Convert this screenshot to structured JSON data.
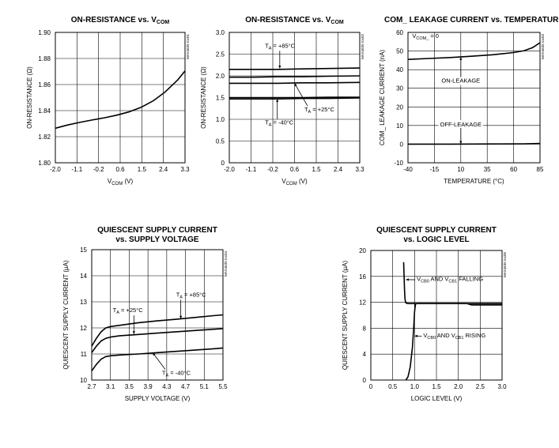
{
  "chart_data": [
    {
      "type": "line",
      "title": "ON-RESISTANCE vs. V",
      "title_sub": "COM",
      "xlabel": "V",
      "xlabel_sub": "COM",
      "xlabel_unit": " (V)",
      "ylabel": "ON-RESISTANCE (Ω)",
      "code": "MAX4635 toc01",
      "xlim": [
        -2.0,
        3.3
      ],
      "ylim": [
        1.8,
        1.9
      ],
      "xticks": [
        "-2.0",
        "-1.1",
        "-0.2",
        "0.6",
        "1.5",
        "2.4",
        "3.3"
      ],
      "yticks": [
        "1.80",
        "1.82",
        "1.84",
        "1.86",
        "1.88",
        "1.90"
      ],
      "series": [
        {
          "x": [
            -2.0,
            -1.5,
            -1.0,
            -0.5,
            0.0,
            0.5,
            1.0,
            1.5,
            2.0,
            2.5,
            3.0,
            3.3
          ],
          "y": [
            1.8265,
            1.829,
            1.831,
            1.8328,
            1.8345,
            1.8365,
            1.839,
            1.8425,
            1.8475,
            1.8545,
            1.8635,
            1.8705
          ]
        }
      ],
      "annotations": []
    },
    {
      "type": "line",
      "title": "ON-RESISTANCE vs. V",
      "title_sub": "COM",
      "xlabel": "V",
      "xlabel_sub": "COM",
      "xlabel_unit": " (V)",
      "ylabel": "ON-RESISTANCE (Ω)",
      "code": "MAX4635 toc02",
      "xlim": [
        -2.0,
        3.3
      ],
      "ylim": [
        0,
        3.0
      ],
      "xticks": [
        "-2.0",
        "-1.1",
        "-0.2",
        "0.6",
        "1.5",
        "2.4",
        "3.3"
      ],
      "yticks": [
        "0",
        "0.5",
        "1.0",
        "1.5",
        "2.0",
        "2.5",
        "3.0"
      ],
      "series": [
        {
          "x": [
            -2.0,
            -1.0,
            0.0,
            1.0,
            2.0,
            3.3
          ],
          "y": [
            2.15,
            2.15,
            2.15,
            2.16,
            2.17,
            2.18
          ]
        },
        {
          "x": [
            -2.0,
            -1.0,
            0.0,
            1.0,
            2.0,
            3.3
          ],
          "y": [
            1.97,
            1.97,
            1.98,
            1.98,
            1.99,
            2.0
          ]
        },
        {
          "x": [
            -2.0,
            -1.0,
            0.0,
            1.0,
            2.0,
            3.3
          ],
          "y": [
            1.83,
            1.83,
            1.83,
            1.84,
            1.84,
            1.85
          ]
        },
        {
          "x": [
            -2.0,
            -1.0,
            0.0,
            1.0,
            2.0,
            3.3
          ],
          "y": [
            1.5,
            1.5,
            1.5,
            1.5,
            1.51,
            1.51
          ]
        },
        {
          "x": [
            -2.0,
            -1.0,
            0.0,
            1.0,
            2.0,
            3.3
          ],
          "y": [
            1.47,
            1.47,
            1.47,
            1.48,
            1.48,
            1.49
          ]
        }
      ],
      "annotations": [
        {
          "text": "T",
          "sub": "A",
          "rest": " = +85°C",
          "x": -0.55,
          "y": 2.65,
          "ax": 0.05,
          "ay": 2.17
        },
        {
          "text": "T",
          "sub": "A",
          "rest": " = -40°C",
          "x": -0.55,
          "y": 0.88,
          "ax": -0.05,
          "ay": 1.47
        },
        {
          "text": "T",
          "sub": "A",
          "rest": " = +25°C",
          "x": 1.05,
          "y": 1.18,
          "ax": 0.65,
          "ay": 1.83
        }
      ]
    },
    {
      "type": "line",
      "title": "COM_ LEAKAGE CURRENT vs. TEMPERATURE",
      "xlabel": "TEMPERATURE (°C)",
      "ylabel": "COM_ LEAKAGE CURRENT (nA)",
      "code": "MAX4635 toc03",
      "xlim": [
        -40,
        85
      ],
      "ylim": [
        -10,
        60
      ],
      "xticks": [
        "-40",
        "-15",
        "10",
        "35",
        "60",
        "85"
      ],
      "yticks": [
        "-10",
        "0",
        "10",
        "20",
        "30",
        "40",
        "50",
        "60"
      ],
      "series": [
        {
          "name": "ON-LEAKAGE",
          "x": [
            -40,
            -20,
            0,
            20,
            40,
            60,
            70,
            78,
            85
          ],
          "y": [
            45.5,
            46.0,
            46.5,
            47.2,
            48.0,
            49.2,
            50.2,
            51.8,
            54.5
          ]
        },
        {
          "name": "OFF-LEAKAGE",
          "x": [
            -40,
            0,
            40,
            70,
            85
          ],
          "y": [
            0.0,
            0.0,
            0.1,
            0.2,
            0.4
          ]
        }
      ],
      "annotations": [
        {
          "text": "V",
          "sub": "COM_",
          "rest": " = 0",
          "x": -36,
          "y": 57,
          "ax": null,
          "ay": null
        },
        {
          "text": "ON-LEAKAGE",
          "x": 10,
          "y": 33,
          "ax": 10,
          "ay": 46.8
        },
        {
          "text": "OFF-LEAKAGE",
          "x": 10,
          "y": 9.5,
          "ax": 10,
          "ay": 0.1
        }
      ]
    },
    {
      "type": "line",
      "title": "QUIESCENT SUPPLY CURRENT",
      "title2": "vs. SUPPLY VOLTAGE",
      "xlabel": "SUPPLY VOLTAGE (V)",
      "ylabel": "QUIESCENT SUPPLY CURRENT (µA)",
      "code": "MAX4635 toc04",
      "xlim": [
        2.7,
        5.5
      ],
      "ylim": [
        10,
        15
      ],
      "xticks": [
        "2.7",
        "3.1",
        "3.5",
        "3.9",
        "4.3",
        "4.7",
        "5.1",
        "5.5"
      ],
      "yticks": [
        "10",
        "11",
        "12",
        "13",
        "14",
        "15"
      ],
      "series": [
        {
          "x": [
            2.7,
            2.8,
            2.9,
            3.0,
            3.1,
            3.3,
            3.7,
            4.1,
            4.5,
            4.9,
            5.3,
            5.5
          ],
          "y": [
            11.3,
            11.6,
            11.85,
            12.0,
            12.05,
            12.1,
            12.2,
            12.27,
            12.33,
            12.4,
            12.47,
            12.5
          ]
        },
        {
          "x": [
            2.7,
            2.8,
            2.9,
            3.0,
            3.1,
            3.3,
            3.7,
            4.1,
            4.5,
            4.9,
            5.3,
            5.5
          ],
          "y": [
            11.05,
            11.3,
            11.5,
            11.6,
            11.65,
            11.7,
            11.75,
            11.8,
            11.85,
            11.9,
            11.95,
            11.97
          ]
        },
        {
          "x": [
            2.7,
            2.8,
            2.9,
            3.0,
            3.1,
            3.3,
            3.7,
            4.1,
            4.5,
            4.9,
            5.3,
            5.5
          ],
          "y": [
            10.35,
            10.6,
            10.8,
            10.9,
            10.93,
            10.96,
            11.0,
            11.05,
            11.1,
            11.15,
            11.2,
            11.23
          ]
        }
      ],
      "annotations": [
        {
          "text": "T",
          "sub": "A",
          "rest": " = +85°C",
          "x": 4.5,
          "y": 13.2,
          "ax": 4.6,
          "ay": 12.35
        },
        {
          "text": "T",
          "sub": "A",
          "rest": " = +25°C",
          "x": 3.15,
          "y": 12.6,
          "ax": 3.6,
          "ay": 11.76
        },
        {
          "text": "T",
          "sub": "A",
          "rest": " = -40°C",
          "x": 4.2,
          "y": 10.2,
          "ax": 4.0,
          "ay": 11.05
        }
      ]
    },
    {
      "type": "line",
      "title": "QUIESCENT SUPPLY CURRENT",
      "title2": "vs. LOGIC LEVEL",
      "xlabel": "LOGIC LEVEL (V)",
      "ylabel": "QUIESCENT SUPPLY CURRENT (µA)",
      "code": "MAX4635 toc05",
      "xlim": [
        0,
        3.0
      ],
      "ylim": [
        0,
        20
      ],
      "xticks": [
        "0",
        "0.5",
        "1.0",
        "1.5",
        "2.0",
        "2.5",
        "3.0"
      ],
      "yticks": [
        "0",
        "4",
        "8",
        "12",
        "16",
        "20"
      ],
      "series": [
        {
          "name": "V CB0 AND V CB1 FALLING",
          "x": [
            0.75,
            0.76,
            0.77,
            0.78,
            0.8,
            0.85,
            1.0,
            1.5,
            2.0,
            2.2,
            2.3,
            2.6,
            3.0
          ],
          "y": [
            18.2,
            16.0,
            14.0,
            12.5,
            11.9,
            11.8,
            11.8,
            11.8,
            11.8,
            11.8,
            11.6,
            11.6,
            11.6
          ]
        },
        {
          "name": "V CB0 AND V CB1 RISING",
          "x": [
            0.8,
            0.85,
            0.9,
            0.95,
            0.98,
            1.0,
            1.02,
            1.05,
            1.2,
            1.5,
            2.0,
            2.5,
            3.0
          ],
          "y": [
            0.0,
            0.5,
            2.0,
            5.0,
            8.0,
            10.5,
            11.7,
            11.8,
            11.8,
            11.8,
            11.8,
            11.8,
            11.8
          ]
        }
      ],
      "annotations": [
        {
          "text": "V",
          "sub": "CB0",
          "rest": " AND V",
          "sub2": "CB1",
          "rest2": " FALLING",
          "x": 1.05,
          "y": 15.3,
          "ax": 0.8,
          "ay": 15.5
        },
        {
          "text": "V",
          "sub": "CB0",
          "rest": " AND V",
          "sub2": "CB1",
          "rest2": " RISING",
          "x": 1.2,
          "y": 6.6,
          "ax": 1.0,
          "ay": 6.8
        }
      ]
    }
  ]
}
